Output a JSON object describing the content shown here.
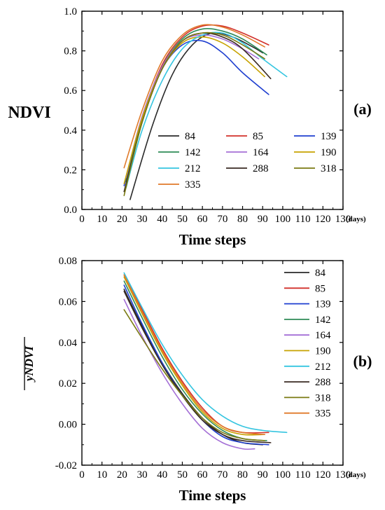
{
  "chart_data": [
    {
      "type": "line",
      "panel_label": "(a)",
      "xlabel": "Time steps",
      "x_unit": "(days)",
      "ylabel": "NDVI",
      "xlim": [
        0,
        130
      ],
      "ylim": [
        0.0,
        1.0
      ],
      "xticks": [
        0,
        10,
        20,
        30,
        40,
        50,
        60,
        70,
        80,
        90,
        100,
        110,
        120,
        130
      ],
      "yticks": [
        "0.0",
        "0.2",
        "0.4",
        "0.6",
        "0.8",
        "1.0"
      ],
      "grid": false,
      "legend_position": "bottom-center",
      "legend_columns": 3,
      "series": [
        {
          "name": "84",
          "color": "#2a2a2a",
          "x": [
            24,
            35,
            45,
            55,
            65,
            75,
            85,
            90
          ],
          "y": [
            0.05,
            0.42,
            0.68,
            0.83,
            0.89,
            0.87,
            0.82,
            0.79
          ]
        },
        {
          "name": "85",
          "color": "#d2302a",
          "x": [
            22,
            30,
            40,
            50,
            60,
            70,
            80,
            93
          ],
          "y": [
            0.15,
            0.46,
            0.73,
            0.87,
            0.925,
            0.925,
            0.89,
            0.83
          ]
        },
        {
          "name": "139",
          "color": "#1f3fd0",
          "x": [
            21,
            30,
            40,
            50,
            60,
            70,
            80,
            93
          ],
          "y": [
            0.12,
            0.45,
            0.71,
            0.83,
            0.85,
            0.79,
            0.69,
            0.58
          ]
        },
        {
          "name": "142",
          "color": "#2e8b57",
          "x": [
            22,
            30,
            40,
            50,
            60,
            70,
            80,
            92
          ],
          "y": [
            0.14,
            0.46,
            0.72,
            0.86,
            0.91,
            0.9,
            0.86,
            0.78
          ]
        },
        {
          "name": "164",
          "color": "#a46fd6",
          "x": [
            22,
            30,
            40,
            50,
            60,
            70,
            80,
            88
          ],
          "y": [
            0.16,
            0.47,
            0.72,
            0.85,
            0.88,
            0.86,
            0.81,
            0.76
          ]
        },
        {
          "name": "190",
          "color": "#c7a200",
          "x": [
            21,
            30,
            40,
            50,
            60,
            70,
            80,
            91
          ],
          "y": [
            0.13,
            0.46,
            0.71,
            0.84,
            0.87,
            0.84,
            0.77,
            0.67
          ]
        },
        {
          "name": "212",
          "color": "#35c5e0",
          "x": [
            22,
            30,
            40,
            50,
            60,
            70,
            80,
            90,
            102
          ],
          "y": [
            0.11,
            0.4,
            0.65,
            0.81,
            0.88,
            0.89,
            0.84,
            0.76,
            0.67
          ]
        },
        {
          "name": "288",
          "color": "#3a2a22",
          "x": [
            21,
            30,
            40,
            50,
            60,
            70,
            80,
            94
          ],
          "y": [
            0.09,
            0.44,
            0.71,
            0.85,
            0.89,
            0.87,
            0.81,
            0.66
          ]
        },
        {
          "name": "318",
          "color": "#7a7a12",
          "x": [
            21,
            30,
            40,
            50,
            60,
            70,
            80,
            91
          ],
          "y": [
            0.07,
            0.44,
            0.71,
            0.85,
            0.89,
            0.88,
            0.83,
            0.76
          ]
        },
        {
          "name": "335",
          "color": "#e07a2a",
          "x": [
            21,
            30,
            40,
            50,
            60,
            70,
            80,
            91
          ],
          "y": [
            0.21,
            0.5,
            0.75,
            0.88,
            0.93,
            0.92,
            0.88,
            0.82
          ]
        }
      ]
    },
    {
      "type": "line",
      "panel_label": "(b)",
      "xlabel": "Time steps",
      "x_unit": "(days)",
      "ylabel": "yNDVI",
      "xlim": [
        0,
        130
      ],
      "ylim": [
        -0.02,
        0.08
      ],
      "xticks": [
        0,
        10,
        20,
        30,
        40,
        50,
        60,
        70,
        80,
        90,
        100,
        110,
        120,
        130
      ],
      "yticks": [
        "-0.02",
        "0.00",
        "0.02",
        "0.04",
        "0.06",
        "0.08"
      ],
      "grid": false,
      "legend_position": "top-right",
      "legend_columns": 1,
      "series": [
        {
          "name": "84",
          "color": "#2a2a2a",
          "x": [
            21,
            30,
            40,
            50,
            60,
            70,
            80,
            90
          ],
          "y": [
            0.066,
            0.048,
            0.03,
            0.015,
            0.003,
            -0.005,
            -0.009,
            -0.01
          ]
        },
        {
          "name": "85",
          "color": "#d2302a",
          "x": [
            21,
            30,
            40,
            50,
            60,
            70,
            80,
            93
          ],
          "y": [
            0.073,
            0.056,
            0.037,
            0.021,
            0.008,
            -0.001,
            -0.004,
            -0.004
          ]
        },
        {
          "name": "139",
          "color": "#1f3fd0",
          "x": [
            21,
            30,
            40,
            50,
            60,
            70,
            80,
            93
          ],
          "y": [
            0.068,
            0.049,
            0.03,
            0.014,
            0.002,
            -0.006,
            -0.009,
            -0.01
          ]
        },
        {
          "name": "142",
          "color": "#2e8b57",
          "x": [
            21,
            30,
            40,
            50,
            60,
            70,
            80,
            92
          ],
          "y": [
            0.07,
            0.052,
            0.033,
            0.017,
            0.005,
            -0.003,
            -0.007,
            -0.008
          ]
        },
        {
          "name": "164",
          "color": "#a46fd6",
          "x": [
            21,
            30,
            40,
            50,
            60,
            70,
            80,
            86
          ],
          "y": [
            0.061,
            0.043,
            0.025,
            0.01,
            -0.002,
            -0.009,
            -0.012,
            -0.012
          ]
        },
        {
          "name": "190",
          "color": "#c7a200",
          "x": [
            21,
            30,
            40,
            50,
            60,
            70,
            80,
            91
          ],
          "y": [
            0.072,
            0.054,
            0.035,
            0.019,
            0.006,
            -0.002,
            -0.005,
            -0.005
          ]
        },
        {
          "name": "212",
          "color": "#35c5e0",
          "x": [
            21,
            30,
            40,
            50,
            60,
            70,
            80,
            90,
            102
          ],
          "y": [
            0.074,
            0.057,
            0.039,
            0.024,
            0.012,
            0.004,
            -0.001,
            -0.003,
            -0.004
          ]
        },
        {
          "name": "288",
          "color": "#3a2a22",
          "x": [
            21,
            30,
            40,
            50,
            60,
            70,
            80,
            94
          ],
          "y": [
            0.065,
            0.047,
            0.029,
            0.014,
            0.002,
            -0.005,
            -0.008,
            -0.009
          ]
        },
        {
          "name": "318",
          "color": "#7a7a12",
          "x": [
            21,
            30,
            40,
            50,
            60,
            70,
            80,
            91
          ],
          "y": [
            0.056,
            0.042,
            0.027,
            0.014,
            0.003,
            -0.004,
            -0.007,
            -0.008
          ]
        },
        {
          "name": "335",
          "color": "#e07a2a",
          "x": [
            21,
            30,
            40,
            50,
            60,
            70,
            80,
            91
          ],
          "y": [
            0.073,
            0.055,
            0.036,
            0.02,
            0.007,
            -0.001,
            -0.004,
            -0.005
          ]
        }
      ]
    }
  ]
}
